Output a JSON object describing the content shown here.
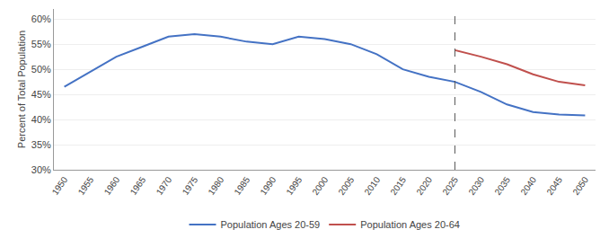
{
  "chart_data": {
    "type": "line",
    "x": [
      1950,
      1955,
      1960,
      1965,
      1970,
      1975,
      1980,
      1985,
      1990,
      1995,
      2000,
      2005,
      2010,
      2015,
      2020,
      2025,
      2030,
      2035,
      2040,
      2045,
      2050
    ],
    "series": [
      {
        "name": "Population Ages 20-59",
        "color": "#4472C4",
        "values": [
          46.5,
          49.5,
          52.5,
          54.5,
          56.5,
          57.0,
          56.5,
          55.5,
          55.0,
          56.5,
          56.0,
          55.0,
          53.0,
          50.0,
          48.5,
          47.5,
          45.5,
          43.0,
          41.5,
          41.0,
          40.8
        ]
      },
      {
        "name": "Population Ages 20-64",
        "color": "#C0504D",
        "values": [
          null,
          null,
          null,
          null,
          null,
          null,
          null,
          null,
          null,
          null,
          null,
          null,
          null,
          null,
          null,
          53.8,
          52.5,
          51.0,
          49.0,
          47.5,
          46.8
        ]
      }
    ],
    "y_label": "Percent of Total Population",
    "xlim": [
      1948,
      2052
    ],
    "xticks": [
      1950,
      1955,
      1960,
      1965,
      1970,
      1975,
      1980,
      1985,
      1990,
      1995,
      2000,
      2005,
      2010,
      2015,
      2020,
      2025,
      2030,
      2035,
      2040,
      2045,
      2050
    ],
    "ylim": [
      30,
      62
    ],
    "yticks": [
      {
        "value": 30,
        "label": "30%"
      },
      {
        "value": 35,
        "label": "35%"
      },
      {
        "value": 40,
        "label": "40%"
      },
      {
        "value": 45,
        "label": "45%"
      },
      {
        "value": 50,
        "label": "50%"
      },
      {
        "value": 55,
        "label": "55%"
      },
      {
        "value": 60,
        "label": "60%"
      }
    ],
    "vline": {
      "x": 2025,
      "color": "#555555",
      "line_style": "dashed"
    },
    "grid": true,
    "legend": "bottom"
  }
}
